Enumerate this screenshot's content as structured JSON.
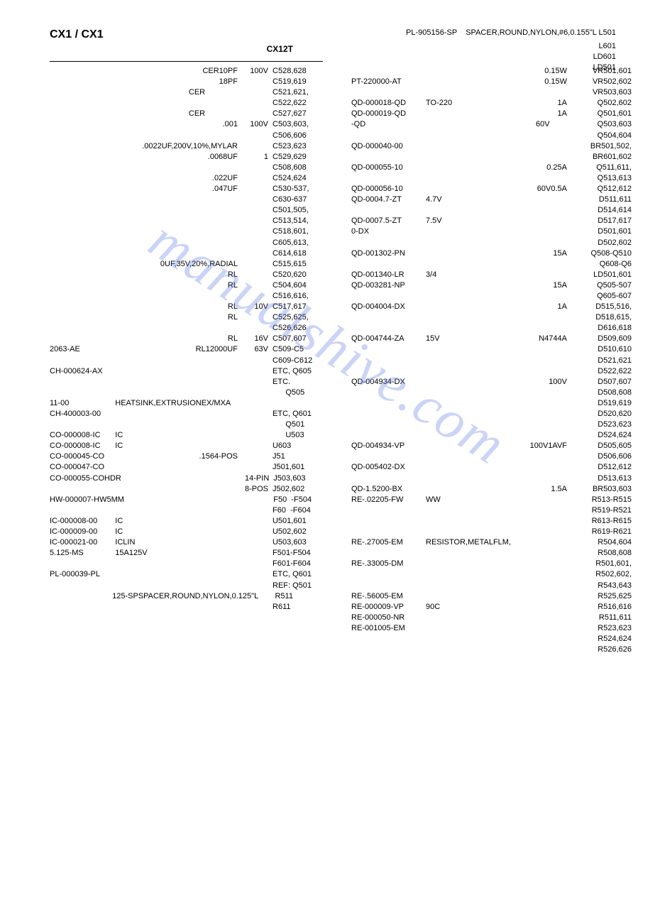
{
  "watermark": "manualshive.com",
  "header": {
    "title": "CX1   / CX1",
    "sub": "CX12T",
    "top_right_part": "PL-905156-SP",
    "top_right_desc": "SPACER,ROUND,NYLON,#6,0.155\"L L501"
  },
  "extra_right": [
    "L601",
    "LD601",
    "LD501"
  ],
  "left": [
    {
      "c1": "",
      "c2": "CER10PF",
      "c3": "100V",
      "c4": "C528,628"
    },
    {
      "c1": "",
      "c2": "18PF",
      "c3": "",
      "c4": "C519,619"
    },
    {
      "c1": "",
      "c2": "CER               ",
      "c3": "",
      "c4": "C521,621,"
    },
    {
      "c1": "",
      "c2": "",
      "c3": "",
      "c4": "C522,622"
    },
    {
      "c1": "",
      "c2": "CER               ",
      "c3": "",
      "c4": "C527,627"
    },
    {
      "c1": "",
      "c2": ".001",
      "c3": "100V",
      "c4": "C503,603,"
    },
    {
      "c1": "",
      "c2": "",
      "c3": "",
      "c4": "C506,606"
    },
    {
      "c1": "",
      "c2": ".0022UF,200V,10%,MYLAR",
      "c3": "",
      "c4": "C523,623"
    },
    {
      "c1": "",
      "c2": ".0068UF",
      "c3": "1",
      "c4": "C529,629"
    },
    {
      "c1": "",
      "c2": "",
      "c3": "",
      "c4": "C508,608"
    },
    {
      "c1": "",
      "c2": ".022UF",
      "c3": "",
      "c4": "C524,624"
    },
    {
      "c1": "",
      "c2": ".047UF",
      "c3": "",
      "c4": "C530-537,"
    },
    {
      "c1": "",
      "c2": "",
      "c3": "",
      "c4": "C630-637"
    },
    {
      "c1": "",
      "c2": "",
      "c3": "",
      "c4": "C501,505,"
    },
    {
      "c1": "",
      "c2": "",
      "c3": "",
      "c4": "C513,514,"
    },
    {
      "c1": "",
      "c2": "",
      "c3": "",
      "c4": "C518,601,"
    },
    {
      "c1": "",
      "c2": "",
      "c3": "",
      "c4": "C605,613,"
    },
    {
      "c1": "",
      "c2": "",
      "c3": "",
      "c4": "C614,618"
    },
    {
      "c1": "",
      "c2": "0UF,35V,20%,RADIAL",
      "c3": "",
      "c4": "C515,615"
    },
    {
      "c1": "",
      "c2": "RL",
      "c3": "",
      "c4": "C520,620"
    },
    {
      "c1": "",
      "c2": "RL",
      "c3": "",
      "c4": "C504,604"
    },
    {
      "c1": "",
      "c2": "",
      "c3": "",
      "c4": "C516,616,"
    },
    {
      "c1": "",
      "c2": "RL",
      "c3": "10V",
      "c4": "C517,617"
    },
    {
      "c1": "",
      "c2": "RL",
      "c3": "",
      "c4": "C525,625,"
    },
    {
      "c1": "",
      "c2": "",
      "c3": "",
      "c4": "C526,626"
    },
    {
      "c1": "",
      "c2": "RL",
      "c3": "16V",
      "c4": "C507,607"
    },
    {
      "c1": "2063-AE",
      "c2": "RL12000UF",
      "c3": "63V",
      "c4": "C509-C5"
    },
    {
      "c1": "",
      "c2": "",
      "c3": "",
      "c4": "C609-C612"
    },
    {
      "c1": "CH-000624-AX",
      "c2": "",
      "c3": "",
      "c4": "ETC, Q605"
    },
    {
      "c1": "",
      "c2": "",
      "c3": "",
      "c4": "ETC."
    },
    {
      "c1": "",
      "c2": "",
      "c3": "",
      "c4": "      Q505"
    },
    {
      "c1": "11-00",
      "c2l": "HEATSINK,EXTRUSIONEX/MXA",
      "c3": "",
      "c4": ""
    },
    {
      "c1": "CH-400003-00",
      "c2": "",
      "c3": "",
      "c4": "ETC, Q601"
    },
    {
      "c1": "",
      "c2": "",
      "c3": "",
      "c4": ""
    },
    {
      "c1": "",
      "c2": "",
      "c3": "",
      "c4": "      Q501"
    },
    {
      "c1": "CO-000008-IC",
      "c2l": "IC",
      "c3": "",
      "c4": "      U503"
    },
    {
      "c1": "CO-000008-IC",
      "c2l": "IC",
      "c3": "",
      "c4": "U603"
    },
    {
      "c1": "CO-000045-CO",
      "c2": ".1564-POS",
      "c3": "",
      "c4": "J51"
    },
    {
      "c1": "CO-000047-CO",
      "c2": "",
      "c3": "",
      "c4": "J501,601"
    },
    {
      "c1": "",
      "c2": "",
      "c3": "",
      "c4": ""
    },
    {
      "c1": "CO-000055-COHDR",
      "c2": "",
      "c3": "14-PIN",
      "c4": "J503,603"
    },
    {
      "c1": "",
      "c2": "",
      "c3": "8-POS",
      "c4": "J502,602"
    },
    {
      "c1": "HW-000007-HW5MM",
      "c2": "",
      "c3": "",
      "c4": "F50  -F504"
    },
    {
      "c1": "",
      "c2": "",
      "c3": "",
      "c4": "F60  -F604"
    },
    {
      "c1": "",
      "c2": "",
      "c3": "",
      "c4": ""
    },
    {
      "c1": "IC-000008-00",
      "c2l": "IC",
      "c3": "",
      "c4": "U501,601"
    },
    {
      "c1": "IC-000009-00",
      "c2l": "IC",
      "c3": "",
      "c4": "U502,602"
    },
    {
      "c1": "IC-000021-00",
      "c2l": "ICLIN",
      "c3": "",
      "c4": "U503,603"
    },
    {
      "c1": "5.125-MS",
      "c2l": "15A125V",
      "c3": "",
      "c4": "F501-F504"
    },
    {
      "c1": "",
      "c2": "",
      "c3": "",
      "c4": "F601-F604"
    },
    {
      "c1": "PL-000039-PL",
      "c2": "",
      "c3": "",
      "c4": "ETC, Q601"
    },
    {
      "c1": "",
      "c2": "",
      "c3": "",
      "c4": ""
    },
    {
      "c1": "",
      "c2": "",
      "c3": "",
      "c4": "REF: Q501"
    },
    {
      "c1": "",
      "c2l": "125-SPSPACER,ROUND,NYLON,0.125\"L",
      "c3": "",
      "c4": "R511"
    },
    {
      "c1": "",
      "c2": "",
      "c3": "",
      "c4": "R611"
    }
  ],
  "right": [
    {
      "r1": "",
      "r2": "",
      "r3": "0.15W",
      "r4": "VR501,601"
    },
    {
      "r1": "PT-220000-AT",
      "r2": "",
      "r3": "0.15W",
      "r4": "VR502,602"
    },
    {
      "r1": "",
      "r2": "",
      "r3": "",
      "r4": "VR503,603"
    },
    {
      "r1": "QD-000018-QD",
      "r2": "TO-220",
      "r3": "1A",
      "r4": "Q502,602"
    },
    {
      "r1": "QD-000019-QD",
      "r2": "",
      "r3": "1A",
      "r4": "Q501,601"
    },
    {
      "r1": "-QD",
      "r2": "",
      "r3": "60V        ",
      "r4": "Q503,603"
    },
    {
      "r1": "",
      "r2": "",
      "r3": "",
      "r4": "Q504,604"
    },
    {
      "r1": "QD-000040-00",
      "r2": "",
      "r3": "",
      "r4": "BR501,502,"
    },
    {
      "r1": "",
      "r2": "",
      "r3": "",
      "r4": "BR601,602"
    },
    {
      "r1": "QD-000055-10",
      "r2": "",
      "r3": "0.25A",
      "r4": "Q511,611,"
    },
    {
      "r1": "",
      "r2": "",
      "r3": "",
      "r4": "Q513,613"
    },
    {
      "r1": "QD-000056-10",
      "r2": "",
      "r3": "60V0.5A",
      "r4": "Q512,612"
    },
    {
      "r1": "QD-0004.7-ZT",
      "r2": "4.7V",
      "r3": "",
      "r4": "D511,611"
    },
    {
      "r1": "",
      "r2": "",
      "r3": "",
      "r4": "D514,614"
    },
    {
      "r1": "QD-0007.5-ZT",
      "r2": "7.5V",
      "r3": "",
      "r4": "D517,617"
    },
    {
      "r1": "0-DX",
      "r2": "",
      "r3": "",
      "r4": "D501,601"
    },
    {
      "r1": "",
      "r2": "",
      "r3": "",
      "r4": "D502,602"
    },
    {
      "r1": "QD-001302-PN",
      "r2": "",
      "r3": "15A",
      "r4": "Q508-Q510"
    },
    {
      "r1": "",
      "r2": "",
      "r3": "",
      "r4": "Q608-Q6"
    },
    {
      "r1": "QD-001340-LR",
      "r2": "3/4",
      "r3": "",
      "r4": "LD501,601"
    },
    {
      "r1": "QD-003281-NP",
      "r2": "",
      "r3": "15A",
      "r4": "Q505-507"
    },
    {
      "r1": "",
      "r2": "",
      "r3": "",
      "r4": "Q605-607"
    },
    {
      "r1": "QD-004004-DX",
      "r2": "",
      "r3": "1A",
      "r4": "D515,516,"
    },
    {
      "r1": "",
      "r2": "",
      "r3": "",
      "r4": "D518,615,"
    },
    {
      "r1": "",
      "r2": "",
      "r3": "",
      "r4": "D616,618"
    },
    {
      "r1": "QD-004744-ZA",
      "r2": "15V",
      "r3": "N4744A",
      "r4": "D509,609"
    },
    {
      "r1": "",
      "r2": "",
      "r3": "",
      "r4": "D510,610"
    },
    {
      "r1": "",
      "r2": "",
      "r3": "",
      "r4": "D521,621"
    },
    {
      "r1": "",
      "r2": "",
      "r3": "",
      "r4": "D522,622"
    },
    {
      "r1": "QD-004934-DX",
      "r2": "",
      "r3": "100V",
      "r4": "D507,607"
    },
    {
      "r1": "",
      "r2": "",
      "r3": "",
      "r4": "D508,608"
    },
    {
      "r1": "",
      "r2": "",
      "r3": "",
      "r4": "D519,619"
    },
    {
      "r1": "",
      "r2": "",
      "r3": "",
      "r4": "D520,620"
    },
    {
      "r1": "",
      "r2": "",
      "r3": "",
      "r4": "D523,623"
    },
    {
      "r1": "",
      "r2": "",
      "r3": "",
      "r4": "D524,624"
    },
    {
      "r1": "QD-004934-VP",
      "r2": "",
      "r3": "100V1AVF",
      "r4": "D505,605"
    },
    {
      "r1": "",
      "r2": "",
      "r3": "",
      "r4": "D506,606"
    },
    {
      "r1": "QD-005402-DX",
      "r2": "",
      "r3": "",
      "r4": "D512,612"
    },
    {
      "r1": "",
      "r2": "",
      "r3": "",
      "r4": "D513,613"
    },
    {
      "r1": "QD-1.5200-BX",
      "r2": "",
      "r3": "1.5A",
      "r4": "BR503,603"
    },
    {
      "r1": "RE-.02205-FW",
      "r2": "WW",
      "r3": "",
      "r4": "R513-R515"
    },
    {
      "r1": "",
      "r2": "",
      "r3": "",
      "r4": "R519-R521"
    },
    {
      "r1": "",
      "r2": "",
      "r3": "",
      "r4": "R613-R615"
    },
    {
      "r1": "",
      "r2": "",
      "r3": "",
      "r4": "R619-R621"
    },
    {
      "r1": "RE-.27005-EM",
      "r2": "RESISTOR,METALFLM,",
      "r3": "",
      "r4": "R504,604"
    },
    {
      "r1": "",
      "r2": "",
      "r3": "",
      "r4": "R508,608"
    },
    {
      "r1": "RE-.33005-DM",
      "r2": "",
      "r3": "",
      "r4": "R501,601,"
    },
    {
      "r1": "",
      "r2": "",
      "r3": "",
      "r4": "R502,602,"
    },
    {
      "r1": "",
      "r2": "",
      "r3": "",
      "r4": "R543,643"
    },
    {
      "r1": "RE-.56005-EM",
      "r2": "",
      "r3": "",
      "r4": "R525,625"
    },
    {
      "r1": "RE-000009-VP",
      "r2": "90C",
      "r3": "",
      "r4": "R516,616"
    },
    {
      "r1": "RE-000050-NR",
      "r2": "",
      "r3": "",
      "r4": "R511,611"
    },
    {
      "r1": "RE-001005-EM",
      "r2": "",
      "r3": "",
      "r4": "R523,623"
    },
    {
      "r1": "",
      "r2": "",
      "r3": "",
      "r4": "R524,624"
    },
    {
      "r1": "",
      "r2": "",
      "r3": "",
      "r4": "R526,626"
    }
  ]
}
